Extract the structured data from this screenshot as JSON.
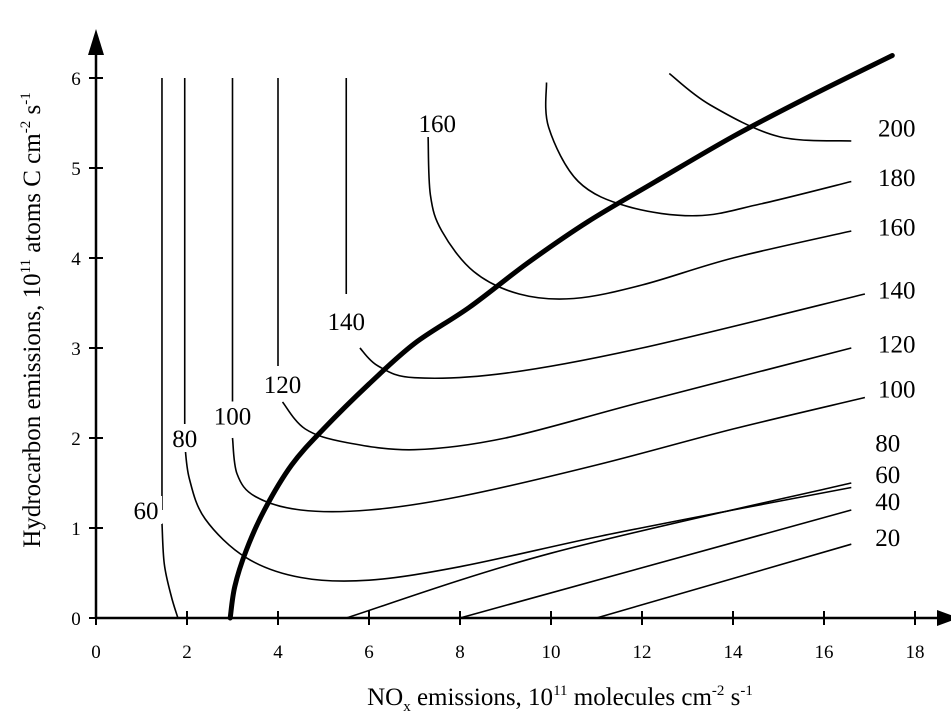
{
  "chart_data": {
    "type": "contour",
    "xlabel": {
      "main": "NO",
      "sub": "x",
      "mid": " emissions, 10",
      "sup1": "11",
      "tail": " molecules cm",
      "sup2": "-2",
      "tail2": " s",
      "sup3": "-1"
    },
    "ylabel": {
      "main": "Hydrocarbon emissions, 10",
      "sup1": "11",
      "mid": " atoms C cm",
      "sup2": "-2",
      "tail": " s",
      "sup3": "-1"
    },
    "xlim": [
      0,
      18
    ],
    "ylim": [
      0,
      6
    ],
    "x_ticks": [
      0,
      2,
      4,
      6,
      8,
      10,
      12,
      14,
      16,
      18
    ],
    "x_tick_labels": [
      "0",
      "2",
      "4",
      "6",
      "8",
      "10",
      "12",
      "14",
      "16",
      "18"
    ],
    "y_ticks": [
      0,
      1,
      2,
      3,
      4,
      5,
      6
    ],
    "y_tick_labels": [
      "0",
      "1",
      "2",
      "3",
      "4",
      "5",
      "6"
    ],
    "contours": [
      {
        "level": "20",
        "points": [
          [
            11.0,
            0.0
          ],
          [
            16.6,
            0.82
          ]
        ]
      },
      {
        "level": "40",
        "points": [
          [
            8.0,
            0.0
          ],
          [
            16.6,
            1.2
          ]
        ]
      },
      {
        "level": "60",
        "points": [
          [
            5.5,
            0.0
          ],
          [
            10.0,
            0.72
          ],
          [
            16.6,
            1.5
          ]
        ]
      },
      {
        "level": "60",
        "points": [
          [
            1.45,
            1.05
          ],
          [
            1.5,
            0.6
          ],
          [
            1.65,
            0.25
          ],
          [
            1.8,
            0.0
          ]
        ]
      },
      {
        "level": "80",
        "points": [
          [
            1.95,
            1.95
          ],
          [
            2.05,
            1.55
          ],
          [
            2.4,
            1.1
          ],
          [
            3.3,
            0.67
          ],
          [
            4.5,
            0.45
          ],
          [
            6.0,
            0.42
          ],
          [
            8.0,
            0.57
          ],
          [
            11.0,
            0.9
          ],
          [
            14.0,
            1.2
          ],
          [
            16.6,
            1.45
          ]
        ]
      },
      {
        "level": "100",
        "points": [
          [
            3.0,
            2.0
          ],
          [
            3.1,
            1.6
          ],
          [
            3.5,
            1.35
          ],
          [
            4.5,
            1.2
          ],
          [
            6.0,
            1.2
          ],
          [
            8.0,
            1.35
          ],
          [
            11.0,
            1.7
          ],
          [
            14.0,
            2.1
          ],
          [
            16.9,
            2.45
          ]
        ]
      },
      {
        "level": "120",
        "points": [
          [
            4.1,
            2.4
          ],
          [
            4.6,
            2.1
          ],
          [
            5.5,
            1.95
          ],
          [
            7.0,
            1.87
          ],
          [
            9.0,
            2.0
          ],
          [
            12.0,
            2.4
          ],
          [
            16.6,
            3.0
          ]
        ]
      },
      {
        "level": "140",
        "points": [
          [
            5.8,
            3.0
          ],
          [
            6.2,
            2.8
          ],
          [
            7.0,
            2.67
          ],
          [
            9.0,
            2.72
          ],
          [
            12.0,
            3.0
          ],
          [
            16.9,
            3.6
          ]
        ]
      },
      {
        "level": "160",
        "points": [
          [
            7.3,
            5.35
          ],
          [
            7.35,
            4.7
          ],
          [
            7.6,
            4.3
          ],
          [
            8.3,
            3.85
          ],
          [
            9.3,
            3.6
          ],
          [
            10.5,
            3.55
          ],
          [
            12.0,
            3.7
          ],
          [
            14.0,
            4.0
          ],
          [
            16.6,
            4.3
          ]
        ]
      },
      {
        "level": "180",
        "points": [
          [
            9.9,
            5.95
          ],
          [
            9.95,
            5.45
          ],
          [
            10.6,
            4.85
          ],
          [
            11.7,
            4.57
          ],
          [
            13.2,
            4.47
          ],
          [
            14.6,
            4.6
          ],
          [
            16.6,
            4.85
          ]
        ]
      },
      {
        "level": "200",
        "points": [
          [
            12.6,
            6.05
          ],
          [
            13.5,
            5.7
          ],
          [
            15.0,
            5.35
          ],
          [
            16.6,
            5.3
          ]
        ]
      }
    ],
    "contour_labels": [
      {
        "text": "20",
        "x": 17.4,
        "y": 0.9
      },
      {
        "text": "40",
        "x": 17.4,
        "y": 1.3
      },
      {
        "text": "60",
        "x": 17.4,
        "y": 1.6
      },
      {
        "text": "80",
        "x": 17.4,
        "y": 1.95
      },
      {
        "text": "100",
        "x": 17.6,
        "y": 2.55
      },
      {
        "text": "120",
        "x": 17.6,
        "y": 3.05
      },
      {
        "text": "140",
        "x": 17.6,
        "y": 3.65
      },
      {
        "text": "160",
        "x": 17.6,
        "y": 4.35
      },
      {
        "text": "180",
        "x": 17.6,
        "y": 4.9
      },
      {
        "text": "200",
        "x": 17.6,
        "y": 5.45
      },
      {
        "text": "60",
        "x": 1.1,
        "y": 1.2
      },
      {
        "text": "80",
        "x": 1.95,
        "y": 2.0
      },
      {
        "text": "100",
        "x": 3.0,
        "y": 2.25
      },
      {
        "text": "120",
        "x": 4.1,
        "y": 2.6
      },
      {
        "text": "140",
        "x": 5.5,
        "y": 3.3
      },
      {
        "text": "160",
        "x": 7.5,
        "y": 5.5
      }
    ],
    "vertical_lines": [
      {
        "x": 1.45,
        "y_from": 1.2,
        "y_to": 6.0
      },
      {
        "x": 1.95,
        "y_from": 2.1,
        "y_to": 6.0
      },
      {
        "x": 3.0,
        "y_from": 2.4,
        "y_to": 6.0
      },
      {
        "x": 4.0,
        "y_from": 2.8,
        "y_to": 6.0
      },
      {
        "x": 5.5,
        "y_from": 3.6,
        "y_to": 6.0
      }
    ],
    "ridge_line": {
      "points": [
        [
          2.95,
          0.0
        ],
        [
          3.05,
          0.35
        ],
        [
          3.3,
          0.75
        ],
        [
          3.7,
          1.2
        ],
        [
          4.3,
          1.7
        ],
        [
          5.0,
          2.1
        ],
        [
          6.0,
          2.6
        ],
        [
          7.0,
          3.05
        ],
        [
          8.2,
          3.45
        ],
        [
          9.5,
          3.95
        ],
        [
          10.8,
          4.4
        ],
        [
          12.3,
          4.85
        ],
        [
          14.0,
          5.35
        ],
        [
          15.7,
          5.8
        ],
        [
          17.5,
          6.25
        ]
      ]
    }
  }
}
